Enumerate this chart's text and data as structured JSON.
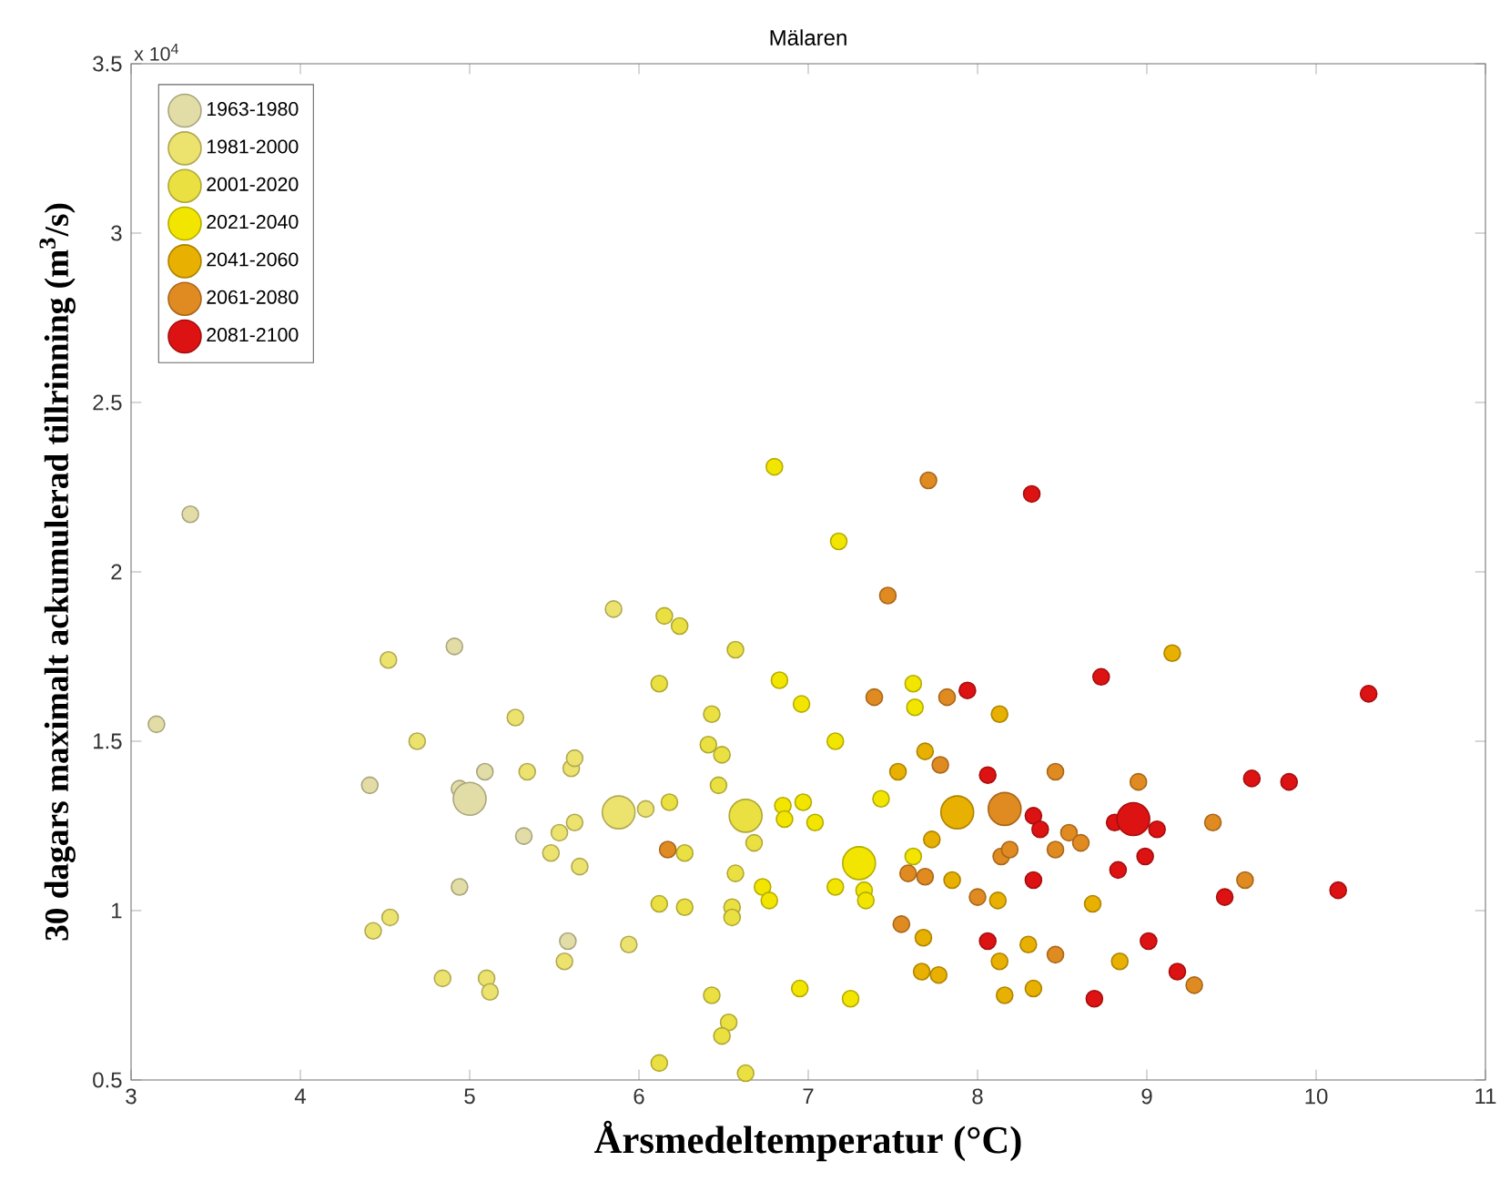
{
  "chart_data": {
    "type": "bubble",
    "title": "Mälaren",
    "xlabel": "Årsmedeltemperatur (°C)",
    "ylabel": "30 dagars maximalt ackumulerad tillrinning (m$^{3}$/s)",
    "annotations": [
      "x 10$^{4}$"
    ],
    "xlim": [
      3,
      11
    ],
    "ylim": [
      0.5,
      3.5
    ],
    "xticks": [
      3,
      4,
      5,
      6,
      7,
      8,
      9,
      10,
      11
    ],
    "yticks": [
      0.5,
      1,
      1.5,
      2,
      2.5,
      3,
      3.5
    ],
    "grid": false,
    "legend": "top left",
    "series": [
      {
        "name": "1963-1980",
        "color": "#e2dca6",
        "x": [
          3.35,
          3.15,
          4.91,
          5.09,
          5.32,
          4.94,
          5.58,
          4.94,
          4.41,
          5.0
        ],
        "values": [
          2.17,
          1.55,
          1.78,
          1.41,
          1.22,
          1.07,
          0.91,
          1.36,
          1.37,
          1.33
        ],
        "sizes": [
          0.25,
          0.25,
          0.25,
          0.25,
          0.25,
          0.25,
          0.25,
          0.25,
          0.25,
          1
        ]
      },
      {
        "name": "1981-2000",
        "color": "#ece26e",
        "x": [
          4.52,
          4.69,
          5.27,
          5.34,
          5.6,
          5.62,
          5.53,
          5.62,
          5.48,
          5.65,
          4.43,
          4.53,
          5.56,
          4.84,
          5.1,
          5.12,
          5.85,
          6.04,
          5.94,
          5.88
        ],
        "values": [
          1.74,
          1.5,
          1.57,
          1.41,
          1.42,
          1.45,
          1.23,
          1.26,
          1.17,
          1.13,
          0.94,
          0.98,
          0.85,
          0.8,
          0.8,
          0.76,
          1.89,
          1.3,
          0.9,
          1.29
        ],
        "sizes": [
          0.25,
          0.25,
          0.25,
          0.25,
          0.25,
          0.25,
          0.25,
          0.25,
          0.25,
          0.25,
          0.25,
          0.25,
          0.25,
          0.25,
          0.25,
          0.25,
          0.25,
          0.25,
          0.25,
          1
        ]
      },
      {
        "name": "2001-2020",
        "color": "#ebe042",
        "x": [
          6.15,
          6.24,
          6.12,
          6.43,
          6.41,
          6.49,
          6.47,
          6.18,
          6.27,
          6.68,
          6.57,
          6.12,
          6.27,
          6.55,
          6.55,
          6.43,
          6.53,
          6.49,
          6.12,
          6.63,
          6.57,
          6.63
        ],
        "values": [
          1.87,
          1.84,
          1.67,
          1.58,
          1.49,
          1.46,
          1.37,
          1.32,
          1.17,
          1.2,
          1.11,
          1.02,
          1.01,
          1.01,
          0.98,
          0.75,
          0.67,
          0.63,
          0.55,
          0.52,
          1.77,
          1.28
        ],
        "sizes": [
          0.25,
          0.25,
          0.25,
          0.25,
          0.25,
          0.25,
          0.25,
          0.25,
          0.25,
          0.25,
          0.25,
          0.25,
          0.25,
          0.25,
          0.25,
          0.25,
          0.25,
          0.25,
          0.25,
          0.25,
          0.25,
          1
        ]
      },
      {
        "name": "2021-2040",
        "color": "#f2e600",
        "x": [
          6.8,
          7.18,
          6.83,
          6.96,
          7.16,
          6.85,
          6.86,
          6.97,
          7.04,
          7.16,
          7.33,
          7.34,
          6.73,
          6.77,
          6.95,
          7.25,
          7.62,
          7.63,
          7.43,
          7.62,
          7.3
        ],
        "values": [
          2.31,
          2.09,
          1.68,
          1.61,
          1.5,
          1.31,
          1.27,
          1.32,
          1.26,
          1.07,
          1.06,
          1.03,
          1.07,
          1.03,
          0.77,
          0.74,
          1.67,
          1.6,
          1.33,
          1.16,
          1.14
        ],
        "sizes": [
          0.25,
          0.25,
          0.25,
          0.25,
          0.25,
          0.25,
          0.25,
          0.25,
          0.25,
          0.25,
          0.25,
          0.25,
          0.25,
          0.25,
          0.25,
          0.25,
          0.25,
          0.25,
          0.25,
          0.25,
          1
        ]
      },
      {
        "name": "2041-2060",
        "color": "#e8b000",
        "x": [
          7.69,
          7.53,
          7.73,
          7.85,
          7.68,
          7.67,
          7.77,
          8.13,
          8.12,
          8.3,
          8.13,
          8.16,
          8.33,
          8.68,
          8.84,
          9.15,
          7.88
        ],
        "values": [
          1.47,
          1.41,
          1.21,
          1.09,
          0.92,
          0.82,
          0.81,
          1.58,
          1.03,
          0.9,
          0.85,
          0.75,
          0.77,
          1.02,
          0.85,
          1.76,
          1.29
        ],
        "sizes": [
          0.25,
          0.25,
          0.25,
          0.25,
          0.25,
          0.25,
          0.25,
          0.25,
          0.25,
          0.25,
          0.25,
          0.25,
          0.25,
          0.25,
          0.25,
          0.25,
          1
        ]
      },
      {
        "name": "2061-2080",
        "color": "#e08a22",
        "x": [
          7.71,
          7.47,
          7.39,
          7.78,
          6.17,
          7.59,
          7.69,
          7.55,
          7.82,
          8.46,
          8.95,
          8.54,
          8.61,
          8.46,
          8.14,
          8.19,
          8.0,
          8.46,
          9.28,
          9.39,
          9.58,
          8.16
        ],
        "values": [
          2.27,
          1.93,
          1.63,
          1.43,
          1.18,
          1.11,
          1.1,
          0.96,
          1.63,
          1.41,
          1.38,
          1.23,
          1.2,
          1.18,
          1.16,
          1.18,
          1.04,
          0.87,
          0.78,
          1.26,
          1.09,
          1.3
        ],
        "sizes": [
          0.25,
          0.25,
          0.25,
          0.25,
          0.25,
          0.25,
          0.25,
          0.25,
          0.25,
          0.25,
          0.25,
          0.25,
          0.25,
          0.25,
          0.25,
          0.25,
          0.25,
          0.25,
          0.25,
          0.25,
          0.25,
          1
        ]
      },
      {
        "name": "2081-2100",
        "color": "#dd1212",
        "x": [
          8.32,
          8.73,
          7.94,
          8.06,
          8.33,
          8.37,
          8.81,
          9.06,
          8.99,
          8.83,
          8.33,
          8.06,
          9.01,
          9.18,
          8.69,
          10.31,
          9.62,
          9.84,
          9.46,
          10.13,
          8.92
        ],
        "values": [
          2.23,
          1.69,
          1.65,
          1.4,
          1.28,
          1.24,
          1.26,
          1.24,
          1.16,
          1.12,
          1.09,
          0.91,
          0.91,
          0.82,
          0.74,
          1.64,
          1.39,
          1.38,
          1.04,
          1.06,
          1.27
        ],
        "sizes": [
          0.25,
          0.25,
          0.25,
          0.25,
          0.25,
          0.25,
          0.25,
          0.25,
          0.25,
          0.25,
          0.25,
          0.25,
          0.25,
          0.25,
          0.25,
          0.25,
          0.25,
          0.25,
          0.25,
          0.25,
          1
        ]
      }
    ]
  }
}
